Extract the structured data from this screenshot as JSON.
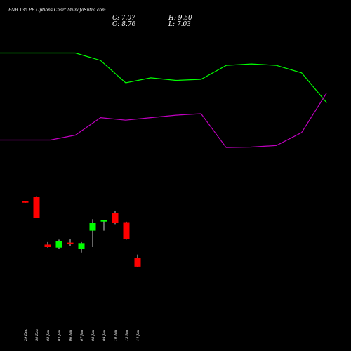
{
  "title": "PNB 135 PE Options Chart MunafaSutra.com",
  "ohlc": {
    "close_label": "C: 7.07",
    "open_label": "O: 8.76",
    "high_label": "H: 9.50",
    "low_label": "L: 7.03"
  },
  "colors": {
    "background": "#000000",
    "upper_band": "#00ff00",
    "lower_band": "#c000c0",
    "bull": "#00ff00",
    "bear": "#ff0000",
    "text": "#ffffff"
  },
  "chart_data": {
    "type": "candlestick",
    "x": [
      "29 Dec",
      "30 Dec",
      "02 Jan",
      "03 Jan",
      "06 Jan",
      "07 Jan",
      "08 Jan",
      "09 Jan",
      "10 Jan",
      "13 Jan",
      "14 Jan"
    ],
    "candles": [
      {
        "date": "29 Dec",
        "open": 20.2,
        "high": 20.3,
        "low": 19.9,
        "close": 20.0
      },
      {
        "date": "30 Dec",
        "open": 21.1,
        "high": 21.2,
        "low": 16.8,
        "close": 16.9
      },
      {
        "date": "02 Jan",
        "open": 11.5,
        "high": 12.0,
        "low": 10.9,
        "close": 11.0
      },
      {
        "date": "03 Jan",
        "open": 10.9,
        "high": 12.5,
        "low": 10.6,
        "close": 12.2
      },
      {
        "date": "06 Jan",
        "open": 11.9,
        "high": 12.6,
        "low": 11.2,
        "close": 11.6
      },
      {
        "date": "07 Jan",
        "open": 10.7,
        "high": 12.0,
        "low": 9.9,
        "close": 11.8
      },
      {
        "date": "08 Jan",
        "open": 14.3,
        "high": 16.6,
        "low": 11.0,
        "close": 15.8
      },
      {
        "date": "09 Jan",
        "open": 16.3,
        "high": 16.5,
        "low": 14.3,
        "close": 16.4
      },
      {
        "date": "10 Jan",
        "open": 17.8,
        "high": 18.2,
        "low": 15.6,
        "close": 15.9
      },
      {
        "date": "13 Jan",
        "open": 16.0,
        "high": 16.1,
        "low": 12.5,
        "close": 12.6
      },
      {
        "date": "14 Jan",
        "open": 8.76,
        "high": 9.5,
        "low": 7.03,
        "close": 7.07
      }
    ],
    "upper_band": [
      50,
      50,
      50,
      50,
      48.5,
      44,
      45,
      44.5,
      44.7,
      47.5,
      47.8,
      47.5,
      46,
      40
    ],
    "lower_band": [
      32.5,
      32.5,
      32.5,
      33.5,
      37,
      36.5,
      37,
      37.5,
      37.8,
      31,
      31.1,
      31.4,
      34,
      42
    ],
    "ylim": [
      0,
      55
    ]
  }
}
